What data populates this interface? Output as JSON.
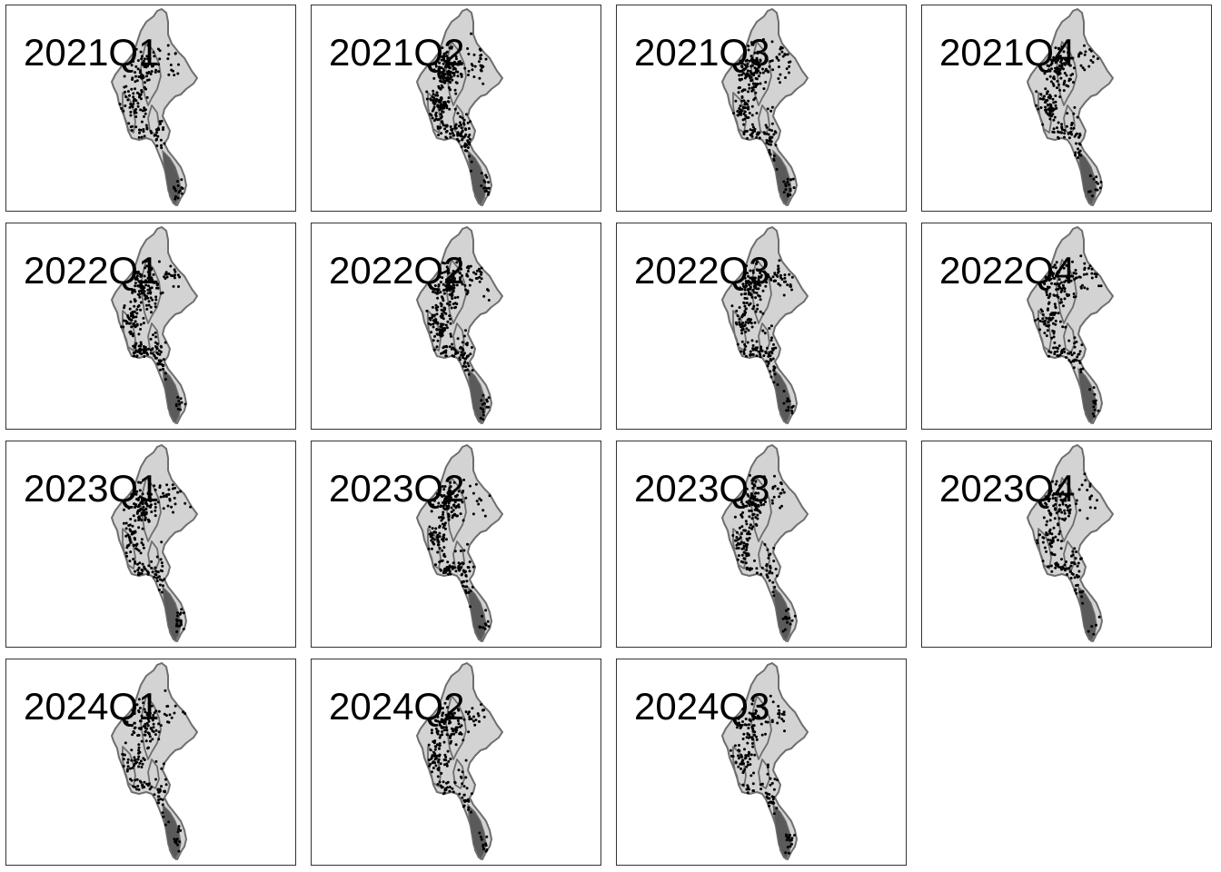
{
  "panels": [
    {
      "label": "2021Q1",
      "events": 180
    },
    {
      "label": "2021Q2",
      "events": 340
    },
    {
      "label": "2021Q3",
      "events": 260
    },
    {
      "label": "2021Q4",
      "events": 230
    },
    {
      "label": "2022Q1",
      "events": 270
    },
    {
      "label": "2022Q2",
      "events": 300
    },
    {
      "label": "2022Q3",
      "events": 260
    },
    {
      "label": "2022Q4",
      "events": 220
    },
    {
      "label": "2023Q1",
      "events": 230
    },
    {
      "label": "2023Q2",
      "events": 250
    },
    {
      "label": "2023Q3",
      "events": 200
    },
    {
      "label": "2023Q4",
      "events": 190
    },
    {
      "label": "2024Q1",
      "events": 190
    },
    {
      "label": "2024Q2",
      "events": 220
    },
    {
      "label": "2024Q3",
      "events": 170
    }
  ],
  "colors": {
    "country_fill": "#d3d3d3",
    "boundary": "#6e6e6e",
    "southern_region": "#5a5a5a",
    "points": "#000000",
    "frame": "#333333"
  }
}
